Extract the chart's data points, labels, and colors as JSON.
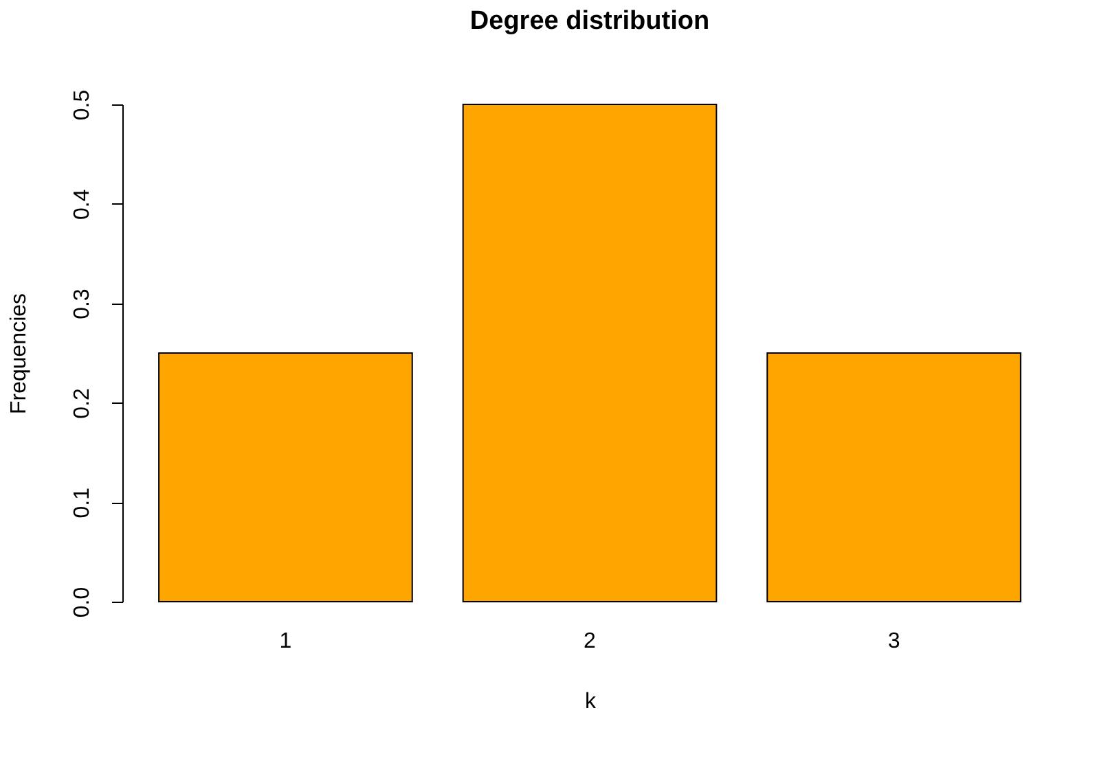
{
  "chart_data": {
    "type": "bar",
    "title": "Degree distribution",
    "xlabel": "k",
    "ylabel": "Frequencies",
    "categories": [
      "1",
      "2",
      "3"
    ],
    "values": [
      0.25,
      0.5,
      0.25
    ],
    "color": "#ffa500",
    "ylim": [
      0,
      0.5
    ],
    "yticks": [
      {
        "value": 0,
        "label": "0.0"
      },
      0.1,
      0.2,
      0.3,
      0.4,
      0.5
    ],
    "grid": false
  }
}
